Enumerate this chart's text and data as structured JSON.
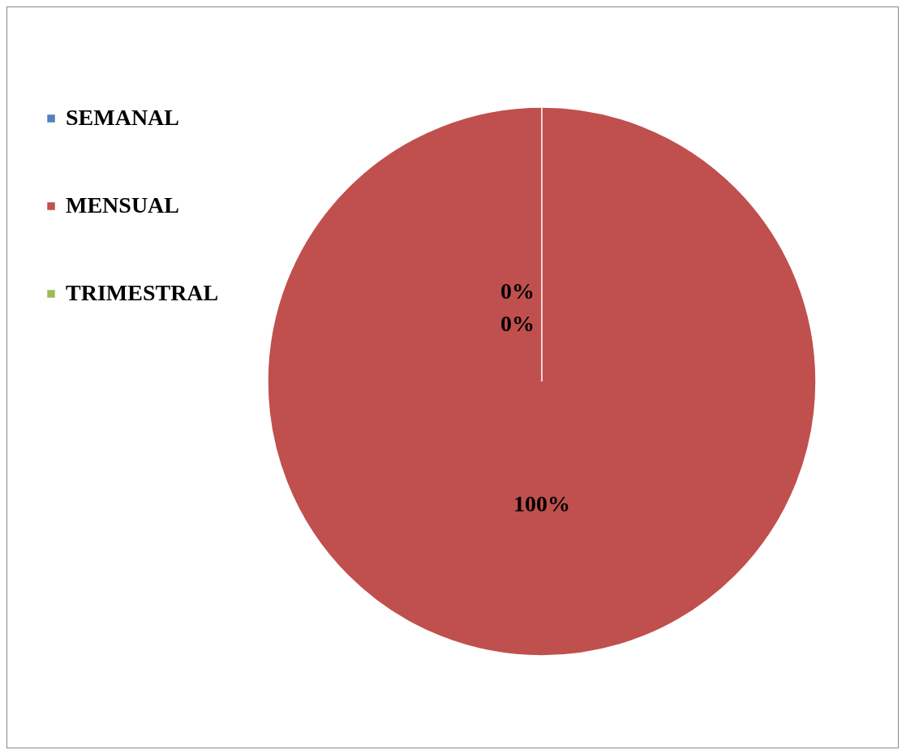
{
  "chart_data": {
    "type": "pie",
    "categories": [
      "SEMANAL",
      "MENSUAL",
      "TRIMESTRAL"
    ],
    "values": [
      0,
      100,
      0
    ],
    "colors": [
      "#4f81bd",
      "#c0504d",
      "#9bbb59"
    ],
    "value_labels": [
      "0%",
      "100%",
      "0%"
    ],
    "legend": "left"
  }
}
